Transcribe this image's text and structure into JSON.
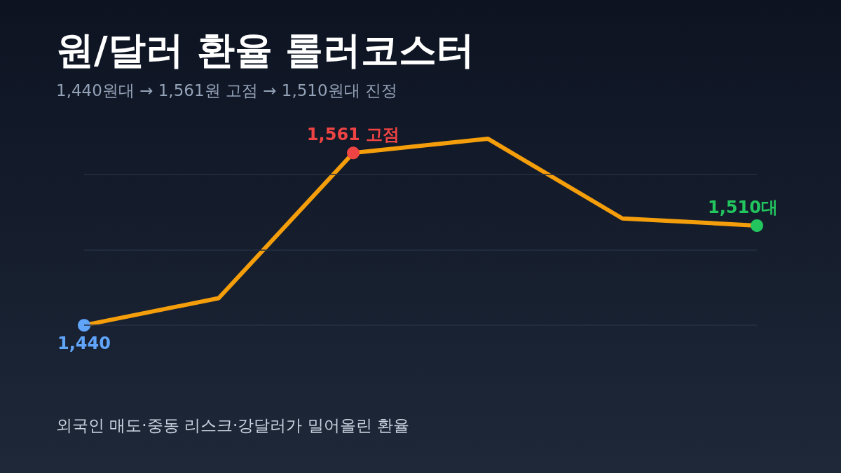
{
  "chart_data": {
    "type": "line",
    "title": "원/달러 환율 롤러코스터",
    "subtitle": "1,440원대 → 1,561원 고점 → 1,510원대 진정",
    "annotations": [
      "외국인 매도·중동 리스크·강달러가 밀어올린 환율"
    ],
    "categories": [
      null,
      null,
      null,
      null,
      null,
      null
    ],
    "series": [
      {
        "color": "#f59e0b",
        "values": [
          1440,
          1459,
          1561,
          1571,
          1515,
          1510
        ],
        "colors": [
          "#60a5fa",
          null,
          "#ef4444",
          null,
          null,
          "#22c55e"
        ],
        "value_labels": [
          "1,440",
          null,
          "1,561 고점",
          null,
          null,
          "1,510대"
        ]
      }
    ],
    "ref_lines": [
      {
        "axis": "y",
        "value": 1440,
        "color": "#263043"
      },
      {
        "axis": "y",
        "value": 1493,
        "color": "#263043"
      },
      {
        "axis": "y",
        "value": 1546,
        "color": "#263043"
      }
    ],
    "tick_labels": false,
    "line_style": "solid"
  }
}
